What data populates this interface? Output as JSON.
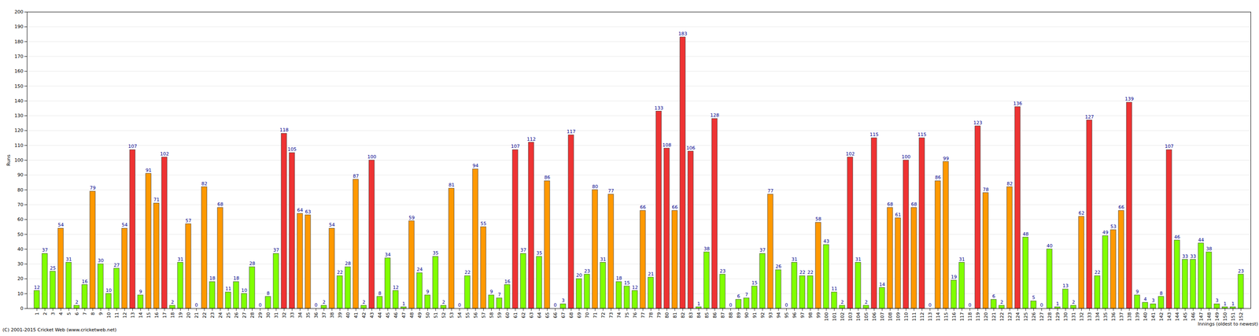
{
  "chart_data": {
    "type": "bar",
    "y_label": "Runs",
    "x_label": "Innings (oldest to newest)",
    "caption": "(C) 2001-2015 Cricket Web (www.cricketweb.net)",
    "categories": [
      1,
      2,
      3,
      4,
      5,
      6,
      7,
      8,
      9,
      10,
      11,
      12,
      13,
      14,
      15,
      16,
      17,
      18,
      19,
      20,
      21,
      22,
      23,
      24,
      25,
      26,
      27,
      28,
      29,
      30,
      31,
      32,
      33,
      34,
      35,
      36,
      37,
      38,
      39,
      40,
      41,
      42,
      43,
      44,
      45,
      46,
      47,
      48,
      49,
      50,
      51,
      52,
      53,
      54,
      55,
      56,
      57,
      58,
      59,
      60,
      61,
      62,
      63,
      64,
      65,
      66,
      67,
      68,
      69,
      70,
      71,
      72,
      73,
      74,
      75,
      76,
      77,
      78,
      79,
      80,
      81,
      82,
      83,
      84,
      85,
      86,
      87,
      88,
      89,
      90,
      91,
      92,
      93,
      94,
      95,
      96,
      97,
      98,
      99,
      100,
      101,
      102,
      103,
      104,
      105,
      106,
      107,
      108,
      109,
      110,
      111,
      112,
      113,
      114,
      115,
      116,
      117,
      118,
      119,
      120,
      121,
      122,
      123,
      124,
      125,
      126,
      127,
      128,
      129,
      130,
      131,
      132,
      133,
      134,
      135,
      136,
      137,
      138,
      139,
      140,
      141,
      142,
      143,
      144,
      145,
      146,
      147,
      148,
      149,
      150,
      151,
      152
    ],
    "values": [
      12,
      37,
      25,
      54,
      31,
      2,
      16,
      79,
      30,
      10,
      27,
      54,
      107,
      9,
      91,
      71,
      102,
      2,
      31,
      57,
      0,
      82,
      18,
      68,
      11,
      18,
      10,
      28,
      0,
      8,
      37,
      118,
      105,
      64,
      63,
      0,
      2,
      54,
      22,
      28,
      87,
      2,
      100,
      8,
      34,
      12,
      1,
      59,
      24,
      9,
      35,
      2,
      81,
      0,
      22,
      94,
      55,
      9,
      7,
      16,
      107,
      37,
      112,
      35,
      86,
      0,
      3,
      117,
      20,
      23,
      80,
      31,
      77,
      18,
      15,
      12,
      66,
      21,
      133,
      108,
      66,
      183,
      106,
      1,
      38,
      128,
      23,
      0,
      6,
      7,
      15,
      37,
      77,
      26,
      0,
      31,
      22,
      22,
      58,
      43,
      11,
      2,
      102,
      31,
      2,
      115,
      14,
      68,
      61,
      100,
      68,
      115,
      0,
      86,
      99,
      19,
      31,
      0,
      123,
      78,
      6,
      2,
      82,
      136,
      48,
      5,
      0,
      40,
      1,
      13,
      2,
      62,
      127,
      22,
      49,
      53,
      66,
      139,
      9,
      4,
      3,
      8,
      107,
      46,
      33,
      33,
      44,
      38,
      3,
      1,
      1,
      23
    ],
    "colors": [
      "#80ff00",
      "#80ff00",
      "#80ff00",
      "#ff9900",
      "#80ff00",
      "#80ff00",
      "#80ff00",
      "#ff9900",
      "#80ff00",
      "#80ff00",
      "#80ff00",
      "#ff9900",
      "#ee3333",
      "#80ff00",
      "#ff9900",
      "#ff9900",
      "#ee3333",
      "#80ff00",
      "#80ff00",
      "#ff9900",
      "#80ff00",
      "#ff9900",
      "#80ff00",
      "#ff9900",
      "#80ff00",
      "#80ff00",
      "#80ff00",
      "#80ff00",
      "#80ff00",
      "#80ff00",
      "#80ff00",
      "#ee3333",
      "#ee3333",
      "#ff9900",
      "#ff9900",
      "#80ff00",
      "#80ff00",
      "#ff9900",
      "#80ff00",
      "#80ff00",
      "#ff9900",
      "#80ff00",
      "#ee3333",
      "#80ff00",
      "#80ff00",
      "#80ff00",
      "#80ff00",
      "#ff9900",
      "#80ff00",
      "#80ff00",
      "#80ff00",
      "#80ff00",
      "#ff9900",
      "#80ff00",
      "#80ff00",
      "#ff9900",
      "#ff9900",
      "#80ff00",
      "#80ff00",
      "#80ff00",
      "#ee3333",
      "#80ff00",
      "#ee3333",
      "#80ff00",
      "#ff9900",
      "#80ff00",
      "#80ff00",
      "#ee3333",
      "#80ff00",
      "#80ff00",
      "#ff9900",
      "#80ff00",
      "#ff9900",
      "#80ff00",
      "#80ff00",
      "#80ff00",
      "#ff9900",
      "#80ff00",
      "#ee3333",
      "#ee3333",
      "#ff9900",
      "#ee3333",
      "#ee3333",
      "#80ff00",
      "#80ff00",
      "#ee3333",
      "#80ff00",
      "#80ff00",
      "#80ff00",
      "#80ff00",
      "#80ff00",
      "#80ff00",
      "#ff9900",
      "#80ff00",
      "#80ff00",
      "#80ff00",
      "#80ff00",
      "#80ff00",
      "#ff9900",
      "#80ff00",
      "#80ff00",
      "#80ff00",
      "#ee3333",
      "#80ff00",
      "#80ff00",
      "#ee3333",
      "#80ff00",
      "#ff9900",
      "#ff9900",
      "#ee3333",
      "#ff9900",
      "#ee3333",
      "#80ff00",
      "#ff9900",
      "#ff9900",
      "#80ff00",
      "#80ff00",
      "#80ff00",
      "#ee3333",
      "#ff9900",
      "#80ff00",
      "#80ff00",
      "#ff9900",
      "#ee3333",
      "#80ff00",
      "#80ff00",
      "#80ff00",
      "#80ff00",
      "#80ff00",
      "#80ff00",
      "#80ff00",
      "#ff9900",
      "#ee3333",
      "#80ff00",
      "#80ff00",
      "#ff9900",
      "#ff9900",
      "#ee3333",
      "#80ff00",
      "#80ff00",
      "#80ff00",
      "#80ff00",
      "#ee3333",
      "#80ff00",
      "#80ff00",
      "#80ff00",
      "#80ff00",
      "#80ff00",
      "#80ff00",
      "#80ff00",
      "#80ff00",
      "#80ff00"
    ],
    "ylim": [
      0,
      200
    ],
    "yticks": [
      0,
      10,
      20,
      30,
      40,
      50,
      60,
      70,
      80,
      90,
      100,
      110,
      120,
      130,
      140,
      150,
      160,
      170,
      180,
      190,
      200
    ],
    "grid": true,
    "data_labels": true
  }
}
